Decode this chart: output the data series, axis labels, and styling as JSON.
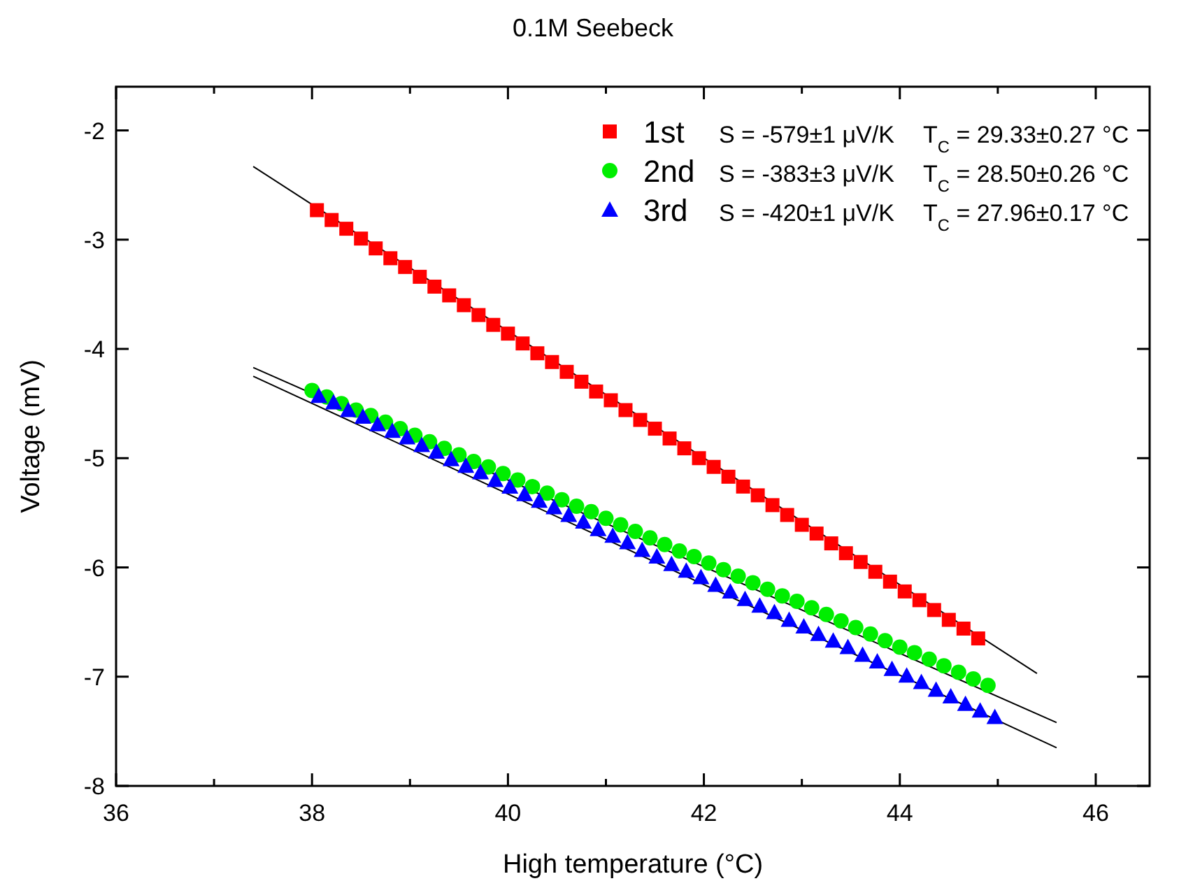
{
  "chart_data": {
    "type": "scatter",
    "title": "0.1M Seebeck",
    "xlabel": "High temperature (°C)",
    "ylabel": "Voltage (mV)",
    "xlim": [
      36,
      46.55
    ],
    "ylim": [
      -8,
      -1.6
    ],
    "xticks": [
      36,
      {
        "value": 37,
        "label": null
      },
      38,
      {
        "value": 39,
        "label": null
      },
      40,
      {
        "value": 41,
        "label": null
      },
      42,
      {
        "value": 43,
        "label": null
      },
      44,
      {
        "value": 45,
        "label": null
      },
      46
    ],
    "yticks": [
      -8,
      -7,
      -6,
      -5,
      -4,
      -3,
      -2
    ],
    "legend": "top right",
    "grid": false,
    "annotations": [
      "S = -579±1 μV/K",
      "T$_{C}$ = 29.33±0.27 °C",
      "S = -383±3 μV/K",
      "T$_{C}$ = 28.50±0.26 °C",
      "S = -420±1 μV/K",
      "T$_{C}$ = 27.96±0.17 °C"
    ],
    "series": [
      {
        "type": "line",
        "color": "#000000",
        "x": [
          37.4,
          45.4
        ],
        "values": [
          -2.33,
          -6.97
        ]
      },
      {
        "type": "line",
        "color": "#000000",
        "x": [
          37.4,
          45.6
        ],
        "values": [
          -4.17,
          -7.42
        ]
      },
      {
        "type": "line",
        "color": "#000000",
        "x": [
          37.4,
          45.6
        ],
        "values": [
          -4.25,
          -7.65
        ]
      },
      {
        "name": "1st",
        "color": "#ff0000",
        "marker": "square",
        "x": [
          38.05,
          38.2,
          38.35,
          38.5,
          38.65,
          38.8,
          38.95,
          39.1,
          39.25,
          39.4,
          39.55,
          39.7,
          39.85,
          40,
          40.15,
          40.3,
          40.45,
          40.6,
          40.75,
          40.9,
          41.05,
          41.2,
          41.35,
          41.5,
          41.65,
          41.8,
          41.95,
          42.1,
          42.25,
          42.4,
          42.55,
          42.7,
          42.85,
          43,
          43.15,
          43.3,
          43.45,
          43.6,
          43.75,
          43.9,
          44.05,
          44.2,
          44.35,
          44.5,
          44.65,
          44.8
        ],
        "values": [
          -2.73,
          -2.82,
          -2.9,
          -2.99,
          -3.08,
          -3.17,
          -3.25,
          -3.34,
          -3.43,
          -3.51,
          -3.6,
          -3.69,
          -3.78,
          -3.86,
          -3.95,
          -4.04,
          -4.12,
          -4.21,
          -4.3,
          -4.39,
          -4.47,
          -4.56,
          -4.65,
          -4.73,
          -4.82,
          -4.91,
          -5,
          -5.08,
          -5.17,
          -5.26,
          -5.34,
          -5.43,
          -5.52,
          -5.61,
          -5.69,
          -5.78,
          -5.87,
          -5.95,
          -6.04,
          -6.13,
          -6.22,
          -6.3,
          -6.39,
          -6.48,
          -6.56,
          -6.65
        ]
      },
      {
        "name": "2nd",
        "color": "#00ee00",
        "marker": "circle",
        "x": [
          38,
          38.15,
          38.3,
          38.45,
          38.6,
          38.75,
          38.9,
          39.05,
          39.2,
          39.35,
          39.5,
          39.65,
          39.8,
          39.95,
          40.1,
          40.25,
          40.4,
          40.55,
          40.7,
          40.85,
          41,
          41.15,
          41.3,
          41.45,
          41.6,
          41.75,
          41.9,
          42.05,
          42.2,
          42.35,
          42.5,
          42.65,
          42.8,
          42.95,
          43.1,
          43.25,
          43.4,
          43.55,
          43.7,
          43.85,
          44,
          44.15,
          44.3,
          44.45,
          44.6,
          44.75,
          44.9
        ],
        "values": [
          -4.38,
          -4.44,
          -4.5,
          -4.56,
          -4.61,
          -4.67,
          -4.73,
          -4.79,
          -4.85,
          -4.91,
          -4.97,
          -5.03,
          -5.08,
          -5.14,
          -5.2,
          -5.26,
          -5.32,
          -5.38,
          -5.44,
          -5.49,
          -5.55,
          -5.61,
          -5.67,
          -5.73,
          -5.79,
          -5.85,
          -5.9,
          -5.96,
          -6.02,
          -6.08,
          -6.14,
          -6.2,
          -6.26,
          -6.31,
          -6.37,
          -6.43,
          -6.49,
          -6.55,
          -6.61,
          -6.67,
          -6.73,
          -6.78,
          -6.84,
          -6.9,
          -6.96,
          -7.02,
          -7.08
        ]
      },
      {
        "name": "3rd",
        "color": "#0000ff",
        "marker": "triangle",
        "x": [
          38.07,
          38.22,
          38.37,
          38.52,
          38.67,
          38.82,
          38.97,
          39.12,
          39.27,
          39.42,
          39.57,
          39.72,
          39.87,
          40.02,
          40.17,
          40.32,
          40.47,
          40.62,
          40.77,
          40.92,
          41.07,
          41.22,
          41.37,
          41.52,
          41.67,
          41.82,
          41.97,
          42.12,
          42.27,
          42.42,
          42.57,
          42.72,
          42.87,
          43.02,
          43.17,
          43.32,
          43.47,
          43.62,
          43.77,
          43.92,
          44.07,
          44.22,
          44.37,
          44.52,
          44.67,
          44.82,
          44.97
        ],
        "values": [
          -4.43,
          -4.49,
          -4.56,
          -4.62,
          -4.69,
          -4.75,
          -4.81,
          -4.88,
          -4.94,
          -5.01,
          -5.07,
          -5.13,
          -5.2,
          -5.26,
          -5.33,
          -5.39,
          -5.45,
          -5.52,
          -5.58,
          -5.65,
          -5.71,
          -5.77,
          -5.84,
          -5.9,
          -5.97,
          -6.03,
          -6.09,
          -6.16,
          -6.22,
          -6.29,
          -6.35,
          -6.41,
          -6.48,
          -6.54,
          -6.61,
          -6.67,
          -6.73,
          -6.8,
          -6.86,
          -6.93,
          -6.99,
          -7.05,
          -7.12,
          -7.18,
          -7.25,
          -7.31,
          -7.37
        ]
      }
    ]
  }
}
